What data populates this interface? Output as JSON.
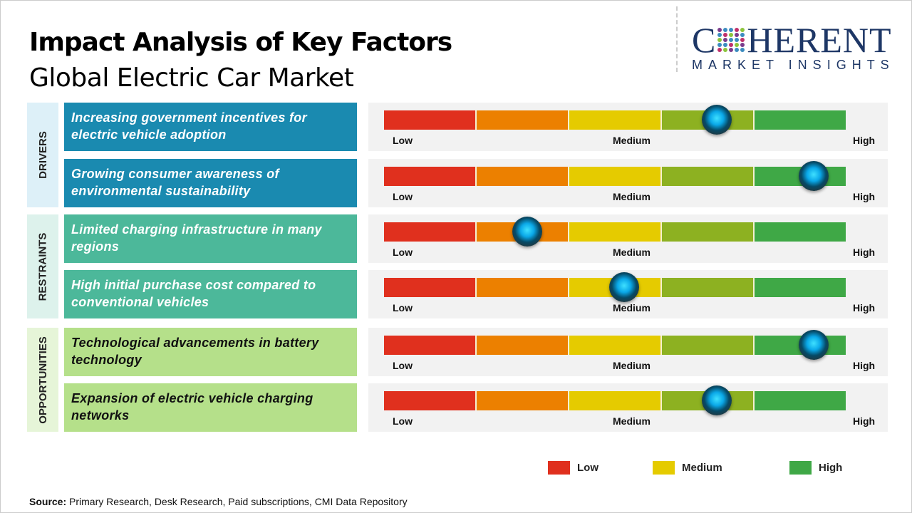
{
  "header": {
    "title": "Impact Analysis of Key Factors",
    "subtitle": "Global Electric Car Market"
  },
  "logo": {
    "text_top": "COHERENT",
    "text_bottom": "MARKET INSIGHTS"
  },
  "colors": {
    "low": "#e0301e",
    "low_medium": "#ec8000",
    "medium": "#e5cb00",
    "medium_high": "#8db121",
    "high": "#3fa846",
    "drivers": "#1a8ab0",
    "restraints": "#4cb89a",
    "opportunities": "#b5e08a"
  },
  "chart_data": {
    "type": "gauge-scale",
    "scale_labels": [
      "Low",
      "Medium",
      "High"
    ],
    "categories": [
      {
        "name": "DRIVERS",
        "factors": [
          {
            "label": "Increasing government incentives for electric vehicle adoption",
            "impact_percent": 72
          },
          {
            "label": "Growing consumer awareness of environmental sustainability",
            "impact_percent": 93
          }
        ]
      },
      {
        "name": "RESTRAINTS",
        "factors": [
          {
            "label": "Limited charging infrastructure in many regions",
            "impact_percent": 31
          },
          {
            "label": "High initial purchase cost compared to conventional vehicles",
            "impact_percent": 52
          }
        ]
      },
      {
        "name": "OPPORTUNITIES",
        "factors": [
          {
            "label": "Technological advancements in battery technology",
            "impact_percent": 93
          },
          {
            "label": "Expansion of electric vehicle charging networks",
            "impact_percent": 72
          }
        ]
      }
    ],
    "legend": [
      {
        "label": "Low",
        "color": "#e0301e"
      },
      {
        "label": "Medium",
        "color": "#e5cb00"
      },
      {
        "label": "High",
        "color": "#3fa846"
      }
    ]
  },
  "source": {
    "label": "Source:",
    "text": " Primary Research, Desk Research, Paid subscriptions, CMI Data Repository"
  }
}
